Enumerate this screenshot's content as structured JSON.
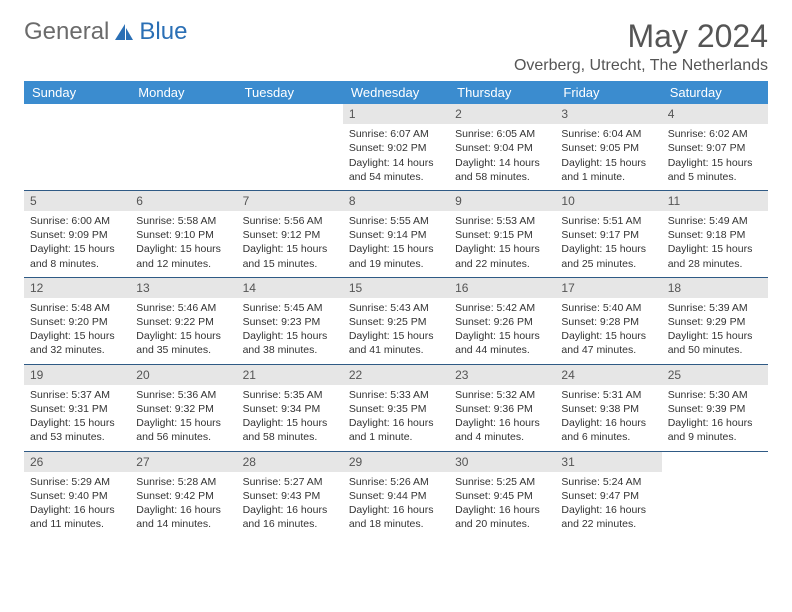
{
  "logo": {
    "text1": "General",
    "text2": "Blue"
  },
  "title": "May 2024",
  "location": "Overberg, Utrecht, The Netherlands",
  "colors": {
    "header_bg": "#3b8ccf",
    "header_text": "#ffffff",
    "border": "#2f5a85",
    "daynum_bg": "#e6e6e6",
    "logo_gray": "#6b6b6b",
    "logo_blue": "#2a6fb5"
  },
  "day_names": [
    "Sunday",
    "Monday",
    "Tuesday",
    "Wednesday",
    "Thursday",
    "Friday",
    "Saturday"
  ],
  "weeks": [
    [
      {
        "empty": true
      },
      {
        "empty": true
      },
      {
        "empty": true
      },
      {
        "n": "1",
        "sr": "6:07 AM",
        "ss": "9:02 PM",
        "dl": "14 hours and 54 minutes."
      },
      {
        "n": "2",
        "sr": "6:05 AM",
        "ss": "9:04 PM",
        "dl": "14 hours and 58 minutes."
      },
      {
        "n": "3",
        "sr": "6:04 AM",
        "ss": "9:05 PM",
        "dl": "15 hours and 1 minute."
      },
      {
        "n": "4",
        "sr": "6:02 AM",
        "ss": "9:07 PM",
        "dl": "15 hours and 5 minutes."
      }
    ],
    [
      {
        "n": "5",
        "sr": "6:00 AM",
        "ss": "9:09 PM",
        "dl": "15 hours and 8 minutes."
      },
      {
        "n": "6",
        "sr": "5:58 AM",
        "ss": "9:10 PM",
        "dl": "15 hours and 12 minutes."
      },
      {
        "n": "7",
        "sr": "5:56 AM",
        "ss": "9:12 PM",
        "dl": "15 hours and 15 minutes."
      },
      {
        "n": "8",
        "sr": "5:55 AM",
        "ss": "9:14 PM",
        "dl": "15 hours and 19 minutes."
      },
      {
        "n": "9",
        "sr": "5:53 AM",
        "ss": "9:15 PM",
        "dl": "15 hours and 22 minutes."
      },
      {
        "n": "10",
        "sr": "5:51 AM",
        "ss": "9:17 PM",
        "dl": "15 hours and 25 minutes."
      },
      {
        "n": "11",
        "sr": "5:49 AM",
        "ss": "9:18 PM",
        "dl": "15 hours and 28 minutes."
      }
    ],
    [
      {
        "n": "12",
        "sr": "5:48 AM",
        "ss": "9:20 PM",
        "dl": "15 hours and 32 minutes."
      },
      {
        "n": "13",
        "sr": "5:46 AM",
        "ss": "9:22 PM",
        "dl": "15 hours and 35 minutes."
      },
      {
        "n": "14",
        "sr": "5:45 AM",
        "ss": "9:23 PM",
        "dl": "15 hours and 38 minutes."
      },
      {
        "n": "15",
        "sr": "5:43 AM",
        "ss": "9:25 PM",
        "dl": "15 hours and 41 minutes."
      },
      {
        "n": "16",
        "sr": "5:42 AM",
        "ss": "9:26 PM",
        "dl": "15 hours and 44 minutes."
      },
      {
        "n": "17",
        "sr": "5:40 AM",
        "ss": "9:28 PM",
        "dl": "15 hours and 47 minutes."
      },
      {
        "n": "18",
        "sr": "5:39 AM",
        "ss": "9:29 PM",
        "dl": "15 hours and 50 minutes."
      }
    ],
    [
      {
        "n": "19",
        "sr": "5:37 AM",
        "ss": "9:31 PM",
        "dl": "15 hours and 53 minutes."
      },
      {
        "n": "20",
        "sr": "5:36 AM",
        "ss": "9:32 PM",
        "dl": "15 hours and 56 minutes."
      },
      {
        "n": "21",
        "sr": "5:35 AM",
        "ss": "9:34 PM",
        "dl": "15 hours and 58 minutes."
      },
      {
        "n": "22",
        "sr": "5:33 AM",
        "ss": "9:35 PM",
        "dl": "16 hours and 1 minute."
      },
      {
        "n": "23",
        "sr": "5:32 AM",
        "ss": "9:36 PM",
        "dl": "16 hours and 4 minutes."
      },
      {
        "n": "24",
        "sr": "5:31 AM",
        "ss": "9:38 PM",
        "dl": "16 hours and 6 minutes."
      },
      {
        "n": "25",
        "sr": "5:30 AM",
        "ss": "9:39 PM",
        "dl": "16 hours and 9 minutes."
      }
    ],
    [
      {
        "n": "26",
        "sr": "5:29 AM",
        "ss": "9:40 PM",
        "dl": "16 hours and 11 minutes."
      },
      {
        "n": "27",
        "sr": "5:28 AM",
        "ss": "9:42 PM",
        "dl": "16 hours and 14 minutes."
      },
      {
        "n": "28",
        "sr": "5:27 AM",
        "ss": "9:43 PM",
        "dl": "16 hours and 16 minutes."
      },
      {
        "n": "29",
        "sr": "5:26 AM",
        "ss": "9:44 PM",
        "dl": "16 hours and 18 minutes."
      },
      {
        "n": "30",
        "sr": "5:25 AM",
        "ss": "9:45 PM",
        "dl": "16 hours and 20 minutes."
      },
      {
        "n": "31",
        "sr": "5:24 AM",
        "ss": "9:47 PM",
        "dl": "16 hours and 22 minutes."
      },
      {
        "empty": true
      }
    ]
  ],
  "labels": {
    "sunrise": "Sunrise:",
    "sunset": "Sunset:",
    "daylight": "Daylight:"
  }
}
